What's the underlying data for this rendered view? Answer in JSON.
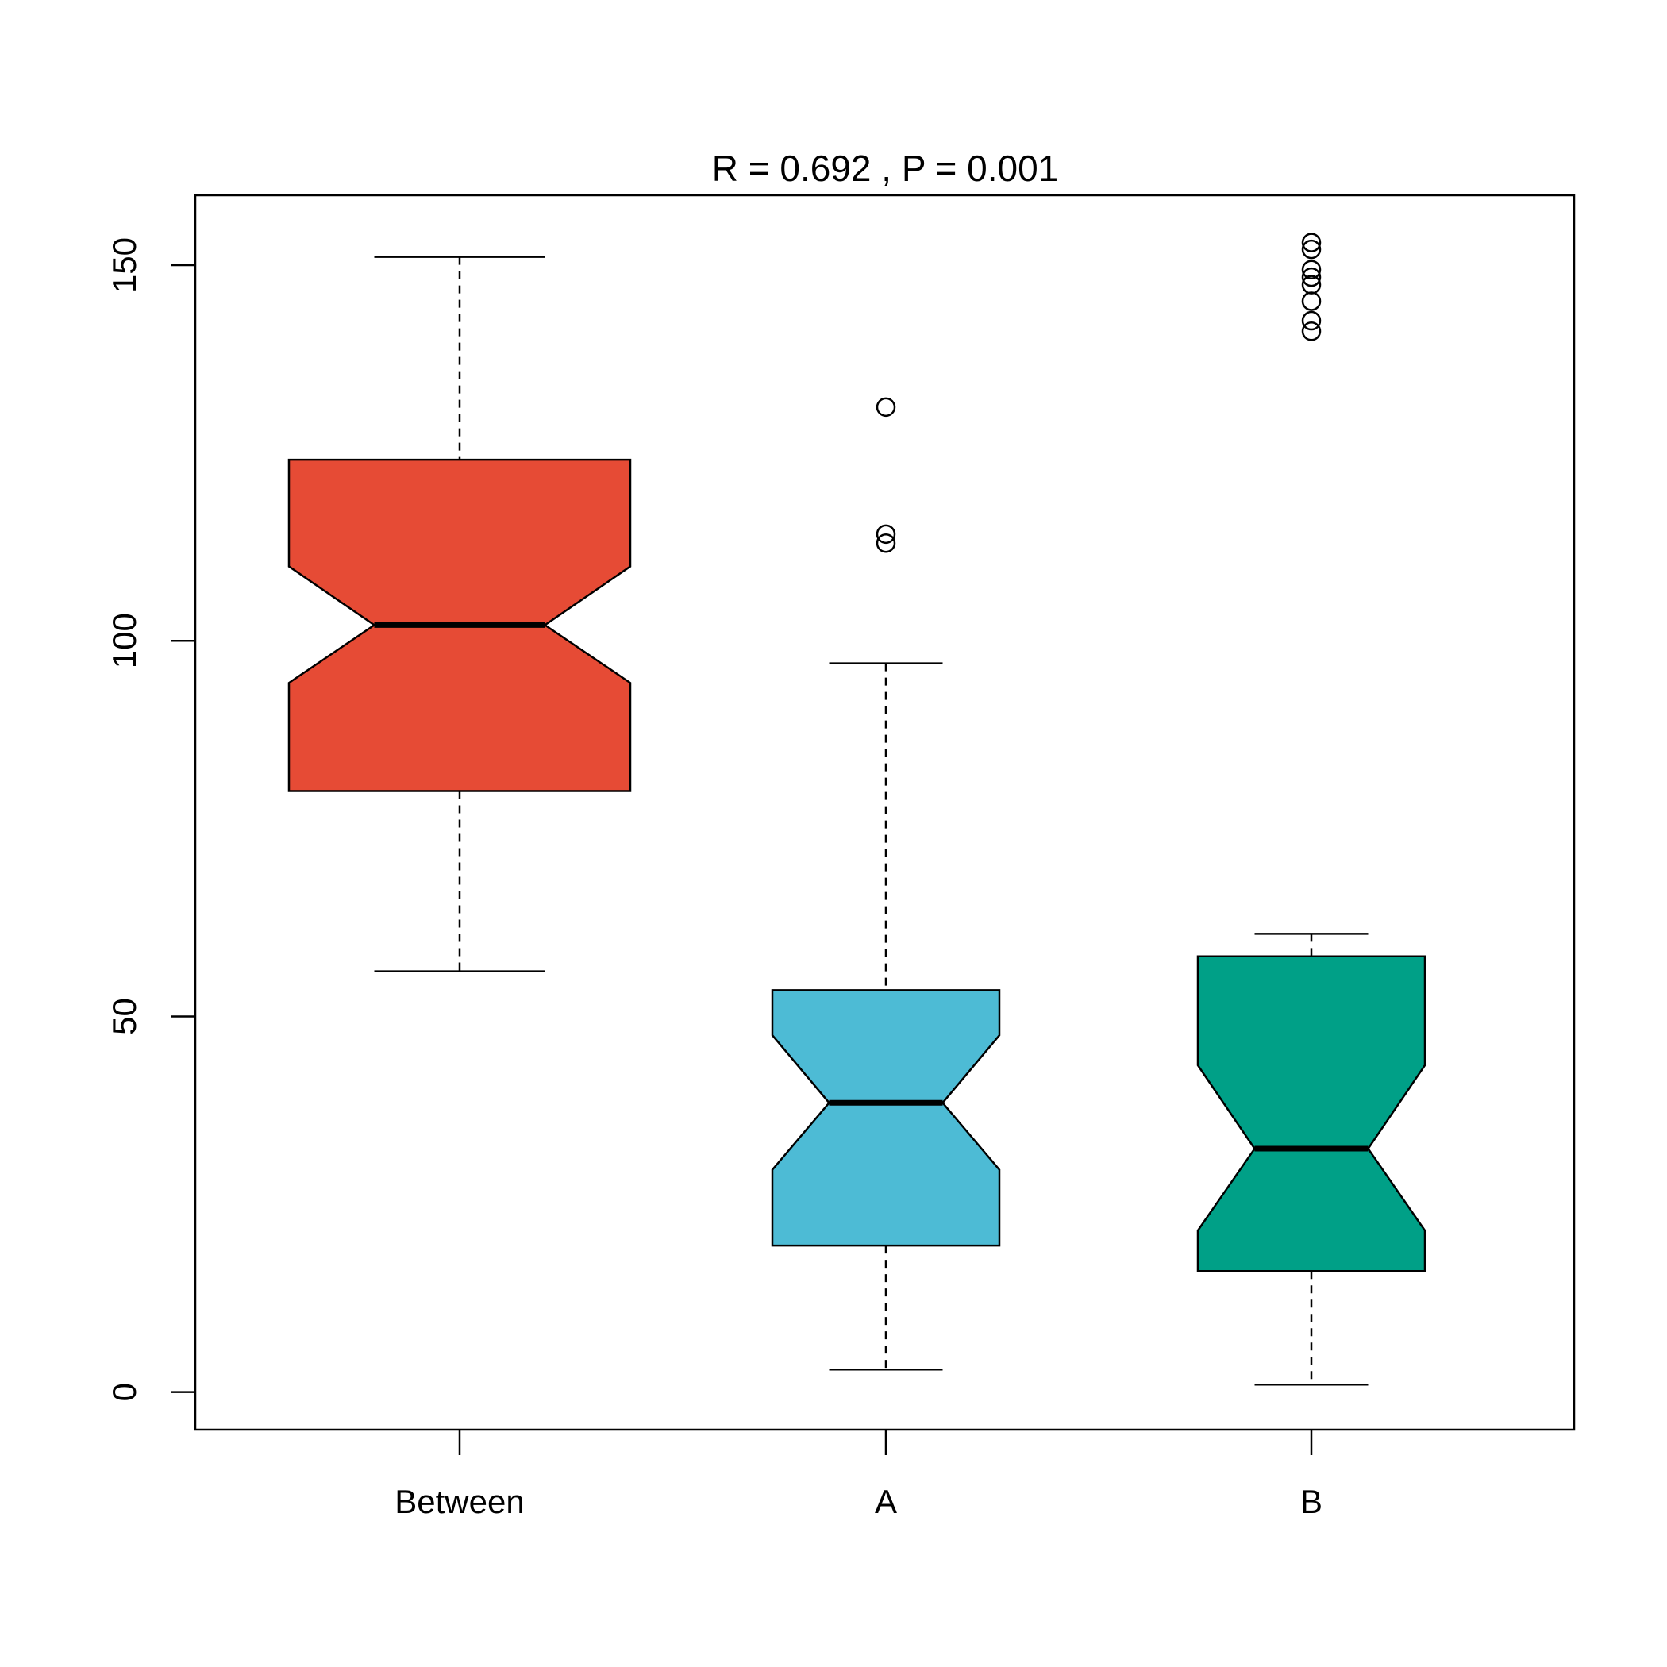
{
  "chart_data": {
    "type": "box",
    "title": "R =  0.692 ,  P =  0.001",
    "categories": [
      "Between",
      "A",
      "B"
    ],
    "boxes": [
      {
        "color": "#E64B35",
        "whisker_low": 56.0,
        "q1": 80.0,
        "median": 102.1,
        "q3": 124.1,
        "whisker_high": 151.1,
        "notch": [
          94.4,
          109.9
        ],
        "outliers": []
      },
      {
        "color": "#4DBBD5",
        "whisker_low": 3.0,
        "q1": 19.5,
        "median": 38.5,
        "q3": 53.5,
        "whisker_high": 97.0,
        "notch": [
          29.6,
          47.5
        ],
        "outliers": [
          131.1,
          114.2,
          113.0
        ]
      },
      {
        "color": "#00A087",
        "whisker_low": 1.0,
        "q1": 16.1,
        "median": 32.4,
        "q3": 58.0,
        "whisker_high": 61.0,
        "notch": [
          21.5,
          43.5
        ],
        "outliers": [
          153.0,
          152.1,
          149.4,
          148.4,
          147.4,
          145.2,
          142.6,
          141.2
        ]
      }
    ],
    "ylim": [
      -5,
      159.3
    ],
    "yticks": [
      0,
      50,
      100,
      150
    ]
  }
}
